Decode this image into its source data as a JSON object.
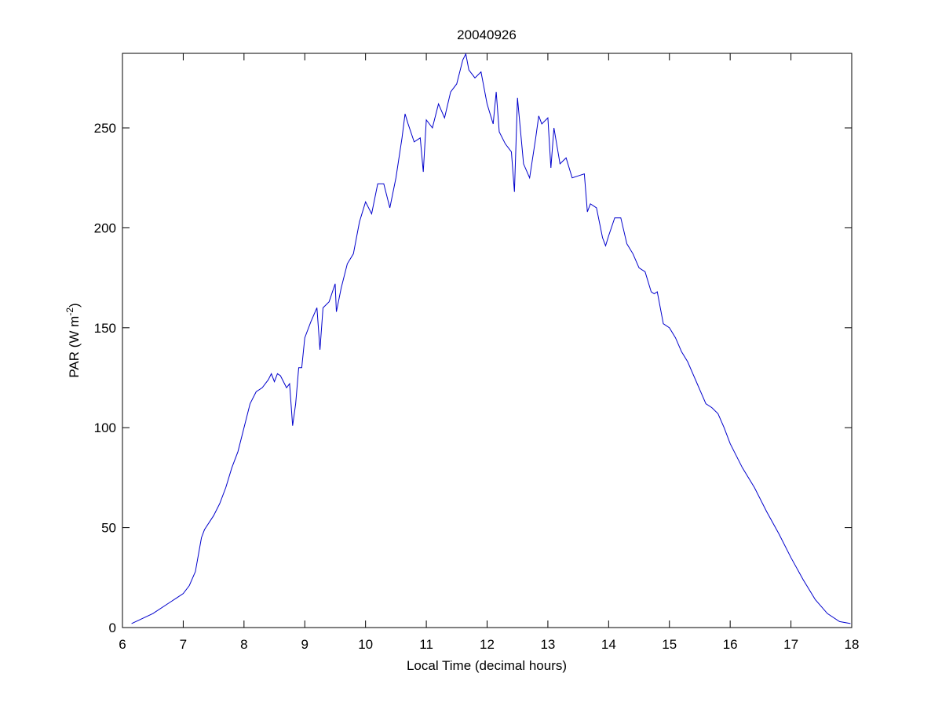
{
  "chart_data": {
    "type": "line",
    "title": "20040926",
    "x_label": "Local Time (decimal hours)",
    "y_label": [
      "PAR (W m",
      "-2",
      ")"
    ],
    "x": [
      6.15,
      6.5,
      6.8,
      6.9,
      7.0,
      7.1,
      7.2,
      7.3,
      7.35,
      7.5,
      7.6,
      7.7,
      7.8,
      7.9,
      8.0,
      8.1,
      8.2,
      8.3,
      8.4,
      8.45,
      8.5,
      8.55,
      8.6,
      8.7,
      8.75,
      8.8,
      8.85,
      8.9,
      8.95,
      9.0,
      9.1,
      9.2,
      9.25,
      9.3,
      9.4,
      9.5,
      9.52,
      9.6,
      9.7,
      9.8,
      9.9,
      10.0,
      10.1,
      10.2,
      10.3,
      10.4,
      10.5,
      10.6,
      10.65,
      10.7,
      10.8,
      10.9,
      10.95,
      11.0,
      11.1,
      11.2,
      11.3,
      11.4,
      11.5,
      11.6,
      11.65,
      11.7,
      11.8,
      11.9,
      12.0,
      12.1,
      12.15,
      12.2,
      12.3,
      12.4,
      12.45,
      12.5,
      12.6,
      12.7,
      12.8,
      12.85,
      12.9,
      13.0,
      13.05,
      13.1,
      13.2,
      13.3,
      13.4,
      13.5,
      13.6,
      13.65,
      13.7,
      13.8,
      13.9,
      13.95,
      14.0,
      14.1,
      14.2,
      14.3,
      14.4,
      14.5,
      14.6,
      14.7,
      14.75,
      14.8,
      14.9,
      15.0,
      15.1,
      15.2,
      15.3,
      15.4,
      15.5,
      15.6,
      15.7,
      15.8,
      15.9,
      16.0,
      16.2,
      16.4,
      16.6,
      16.8,
      17.0,
      17.2,
      17.4,
      17.6,
      17.8,
      17.98
    ],
    "series": [
      {
        "color": "#0000cc",
        "values": [
          2,
          7,
          13,
          15,
          17,
          21,
          28,
          45,
          49,
          56,
          62,
          70,
          80,
          88,
          100,
          112,
          118,
          120,
          124,
          127,
          123,
          127,
          126,
          120,
          122,
          101,
          112,
          130,
          130,
          145,
          153,
          160,
          139,
          160,
          163,
          172,
          158,
          170,
          182,
          187,
          203,
          213,
          207,
          222,
          222,
          210,
          225,
          245,
          257,
          252,
          243,
          245,
          228,
          254,
          250,
          262,
          255,
          268,
          272,
          284,
          287,
          279,
          275,
          278,
          262,
          252,
          268,
          248,
          242,
          238,
          218,
          265,
          232,
          225,
          245,
          256,
          252,
          255,
          230,
          250,
          232,
          235,
          225,
          226,
          227,
          208,
          212,
          210,
          195,
          191,
          196,
          205,
          205,
          192,
          187,
          180,
          178,
          168,
          167,
          168,
          152,
          150,
          145,
          138,
          133,
          126,
          119,
          112,
          110,
          107,
          100,
          92,
          80,
          70,
          58,
          47,
          35,
          24,
          14,
          7,
          3,
          2
        ]
      }
    ],
    "xlim": [
      6,
      18
    ],
    "xticks": [
      6,
      7,
      8,
      9,
      10,
      11,
      12,
      13,
      14,
      15,
      16,
      17,
      18
    ],
    "ylim": [
      0,
      287.3
    ],
    "yticks": [
      0,
      50,
      100,
      150,
      200,
      250
    ],
    "grid": false
  }
}
